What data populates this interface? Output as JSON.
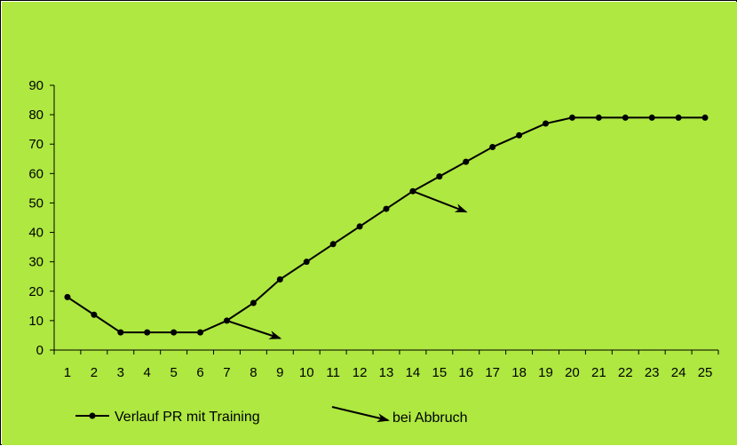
{
  "chart_data": {
    "type": "line",
    "background_color": "#aee840",
    "line_color": "#000000",
    "x": [
      1,
      2,
      3,
      4,
      5,
      6,
      7,
      8,
      9,
      10,
      11,
      12,
      13,
      14,
      15,
      16,
      17,
      18,
      19,
      20,
      21,
      22,
      23,
      24,
      25
    ],
    "x_tick_labels": [
      "1",
      "2",
      "3",
      "4",
      "5",
      "6",
      "7",
      "8",
      "9",
      "10",
      "11",
      "12",
      "13",
      "14",
      "15",
      "16",
      "17",
      "18",
      "19",
      "20",
      "21",
      "22",
      "23",
      "24",
      "25"
    ],
    "series": [
      {
        "name": "Verlauf PR mit Training",
        "values": [
          18,
          12,
          6,
          6,
          6,
          6,
          10,
          16,
          24,
          30,
          36,
          42,
          48,
          54,
          59,
          64,
          69,
          73,
          77,
          79,
          79,
          79,
          79,
          79,
          79
        ]
      }
    ],
    "ylim": [
      0,
      90
    ],
    "y_ticks": [
      0,
      10,
      20,
      30,
      40,
      50,
      60,
      70,
      80,
      90
    ],
    "grid": false,
    "annotations": [
      {
        "name": "bei Abbruch",
        "from": [
          7,
          10
        ],
        "to": [
          9,
          4
        ]
      },
      {
        "name": "bei Abbruch",
        "from": [
          14,
          54
        ],
        "to": [
          16,
          47
        ]
      }
    ],
    "legend": {
      "placement": "bottom-left",
      "items": [
        {
          "label": "Verlauf PR mit Training",
          "kind": "line-marker"
        },
        {
          "label": "bei Abbruch",
          "kind": "arrow"
        }
      ]
    }
  }
}
